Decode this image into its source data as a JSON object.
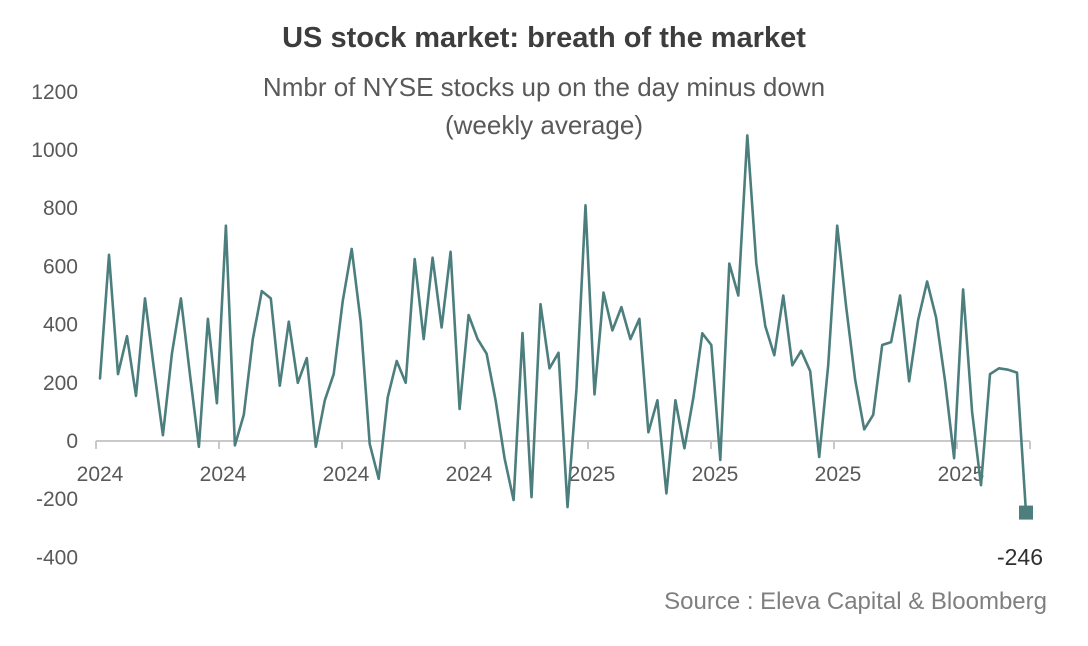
{
  "chart_data": {
    "type": "line",
    "title": "US stock market: breath of the market",
    "subtitle_lines": [
      "Nmbr of NYSE stocks up on the day minus down",
      "(weekly average)"
    ],
    "series": [
      {
        "name": "NYSE stocks up minus down (weekly average)",
        "color": "#4d7e7e",
        "values": [
          215,
          640,
          230,
          360,
          155,
          490,
          250,
          20,
          300,
          490,
          230,
          -20,
          420,
          130,
          740,
          -15,
          90,
          350,
          515,
          490,
          190,
          410,
          200,
          285,
          -20,
          140,
          230,
          480,
          660,
          410,
          -10,
          -130,
          150,
          275,
          200,
          625,
          350,
          630,
          390,
          650,
          110,
          433,
          350,
          300,
          140,
          -60,
          -203,
          371,
          -193,
          470,
          250,
          303,
          -227,
          180,
          810,
          160,
          510,
          380,
          460,
          350,
          420,
          30,
          140,
          -180,
          140,
          -25,
          150,
          370,
          330,
          -65,
          610,
          500,
          1050,
          610,
          395,
          295,
          500,
          260,
          310,
          240,
          -55,
          260,
          740,
          460,
          210,
          40,
          90,
          330,
          340,
          500,
          205,
          415,
          548,
          424,
          205,
          -59,
          521,
          100,
          -152,
          230,
          250,
          245,
          235,
          -246
        ]
      }
    ],
    "x_axis": {
      "tick_labels": [
        "2024",
        "2024",
        "2024",
        "2024",
        "2025",
        "2025",
        "2025",
        "2025"
      ],
      "tick_frequency": "quarterly",
      "data_frequency": "weekly"
    },
    "y_axis": {
      "ticks": [
        1200,
        1000,
        800,
        600,
        400,
        200,
        0,
        -200,
        -400
      ],
      "range": [
        -400,
        1200
      ]
    },
    "grid": false,
    "legend": false,
    "last_point": {
      "value": -246,
      "label": "-246",
      "marker": "square"
    }
  },
  "annotations": {
    "last_value_label": "-246",
    "source_note": "Source : Eleva Capital & Bloomberg"
  },
  "colors": {
    "line": "#4d7e7e",
    "axis_line": "#c9c9c9",
    "tick_text": "#595959",
    "title_text": "#3d3d3d",
    "source_text": "#7f7f7f",
    "last_label_text": "#2f2f2f",
    "background": "#ffffff"
  }
}
